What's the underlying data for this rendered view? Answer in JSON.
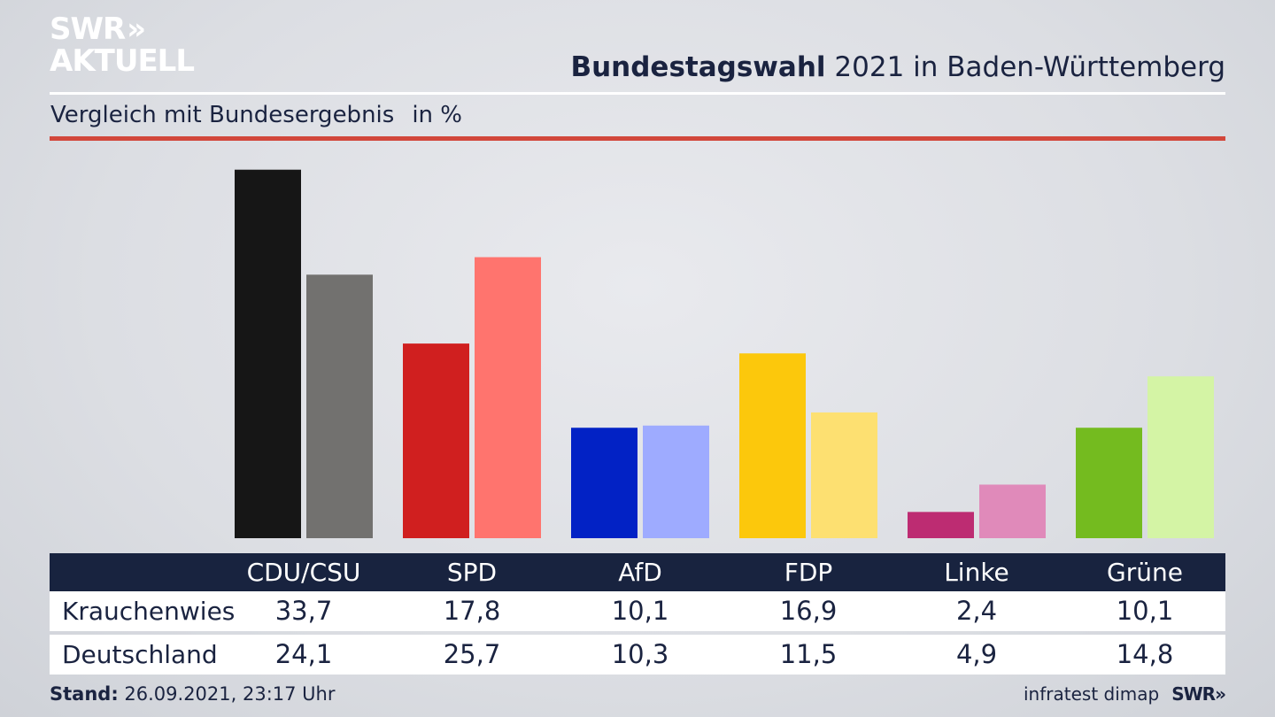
{
  "logo": {
    "line1": "SWR",
    "arrows": "»",
    "line2": "AKTUELL"
  },
  "header": {
    "title_bold": "Bundestagswahl",
    "title_rest": " 2021 in Baden-Württemberg",
    "subtitle": "Vergleich mit Bundesergebnis",
    "unit": "in %"
  },
  "chart_data": {
    "type": "bar",
    "categories": [
      "CDU/CSU",
      "SPD",
      "AfD",
      "FDP",
      "Linke",
      "Grüne"
    ],
    "series": [
      {
        "name": "Krauchenwies",
        "values": [
          33.7,
          17.8,
          10.1,
          16.9,
          2.4,
          10.1
        ],
        "colors": [
          "#161616",
          "#d01f1f",
          "#0222c5",
          "#fcc80c",
          "#bd2c72",
          "#74bb1f"
        ]
      },
      {
        "name": "Deutschland",
        "values": [
          24.1,
          25.7,
          10.3,
          11.5,
          4.9,
          14.8
        ],
        "colors": [
          "#72716f",
          "#ff746e",
          "#9eabff",
          "#fde071",
          "#e08aba",
          "#d4f4a5"
        ]
      }
    ],
    "value_labels": {
      "Krauchenwies": [
        "33,7",
        "17,8",
        "10,1",
        "16,9",
        "2,4",
        "10,1"
      ],
      "Deutschland": [
        "24,1",
        "25,7",
        "10,3",
        "11,5",
        "4,9",
        "14,8"
      ]
    },
    "ylim": [
      0,
      34
    ],
    "grid": false,
    "legend": "table-below"
  },
  "footer": {
    "stand_label": "Stand:",
    "stand_value": " 26.09.2021, 23:17 Uhr",
    "source": "infratest dimap",
    "brand": "SWR»"
  }
}
